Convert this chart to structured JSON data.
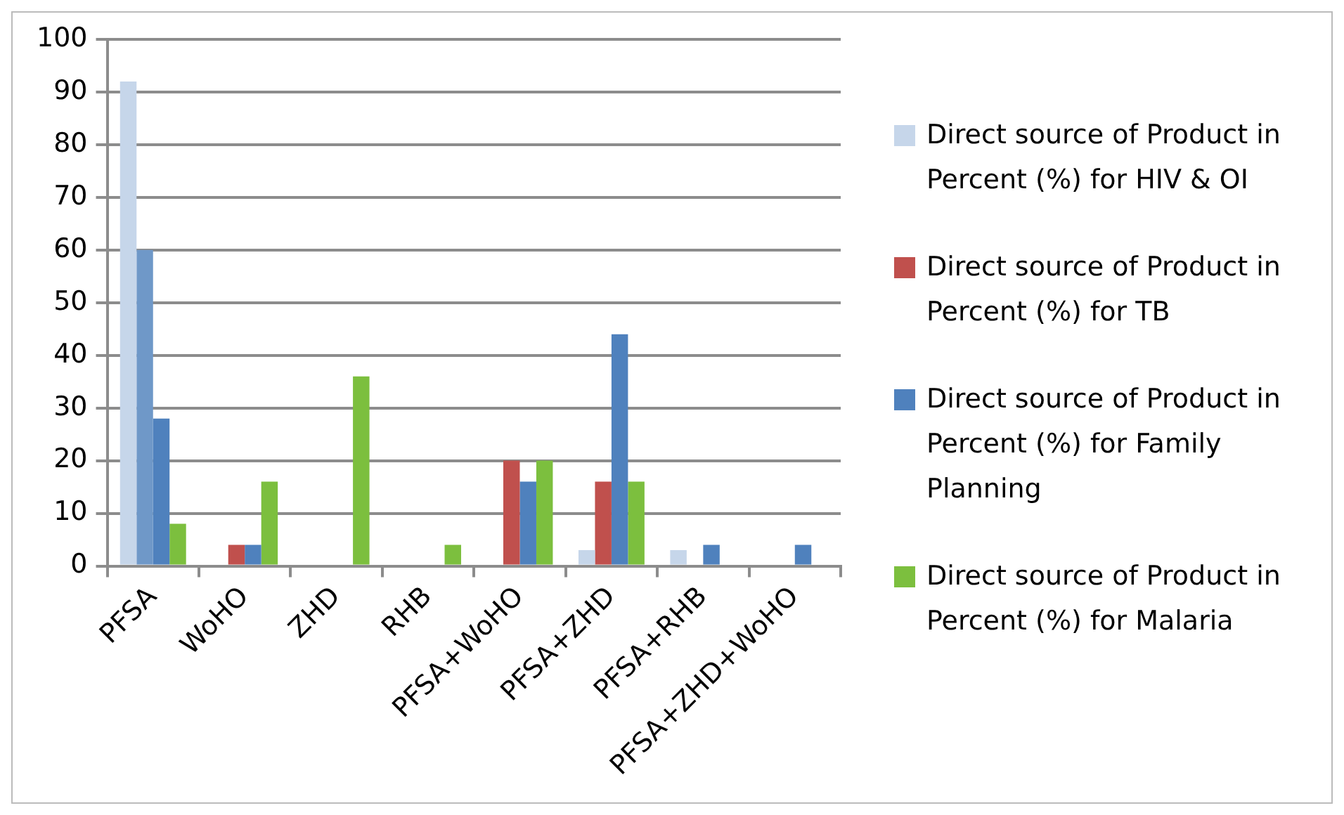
{
  "chart_data": {
    "type": "bar",
    "categories": [
      "PFSA",
      "WoHO",
      "ZHD",
      "RHB",
      "PFSA+WoHO",
      "PFSA+ZHD",
      "PFSA+RHB",
      "PFSA+ZHD+WoHO"
    ],
    "series": [
      {
        "name": "Direct source of Product in Percent (%) for  HIV & OI",
        "color": "#c6d6ea",
        "values": [
          92,
          null,
          null,
          null,
          null,
          3,
          3,
          null
        ]
      },
      {
        "name": "Direct source of Product in Percent (%) for  TB",
        "color": "#c0504d",
        "colors": [
          "#6f98c8",
          "#c0504d",
          "#c0504d",
          "#c0504d",
          "#c0504d",
          "#c0504d",
          "#c0504d",
          "#c0504d"
        ],
        "values": [
          60,
          4,
          null,
          null,
          20,
          16,
          null,
          null
        ]
      },
      {
        "name": "Direct source of Product in Percent (%) for  Family Planning",
        "color": "#4f81bd",
        "values": [
          28,
          4,
          null,
          null,
          16,
          44,
          4,
          4
        ]
      },
      {
        "name": "Direct source of Product in Percent (%) for  Malaria",
        "color": "#7cbf3e",
        "values": [
          8,
          16,
          36,
          4,
          20,
          16,
          null,
          null
        ]
      }
    ],
    "ylim": [
      0,
      100
    ],
    "yticks": [
      0,
      10,
      20,
      30,
      40,
      50,
      60,
      70,
      80,
      90,
      100
    ],
    "grid": "y",
    "legend": "right"
  }
}
